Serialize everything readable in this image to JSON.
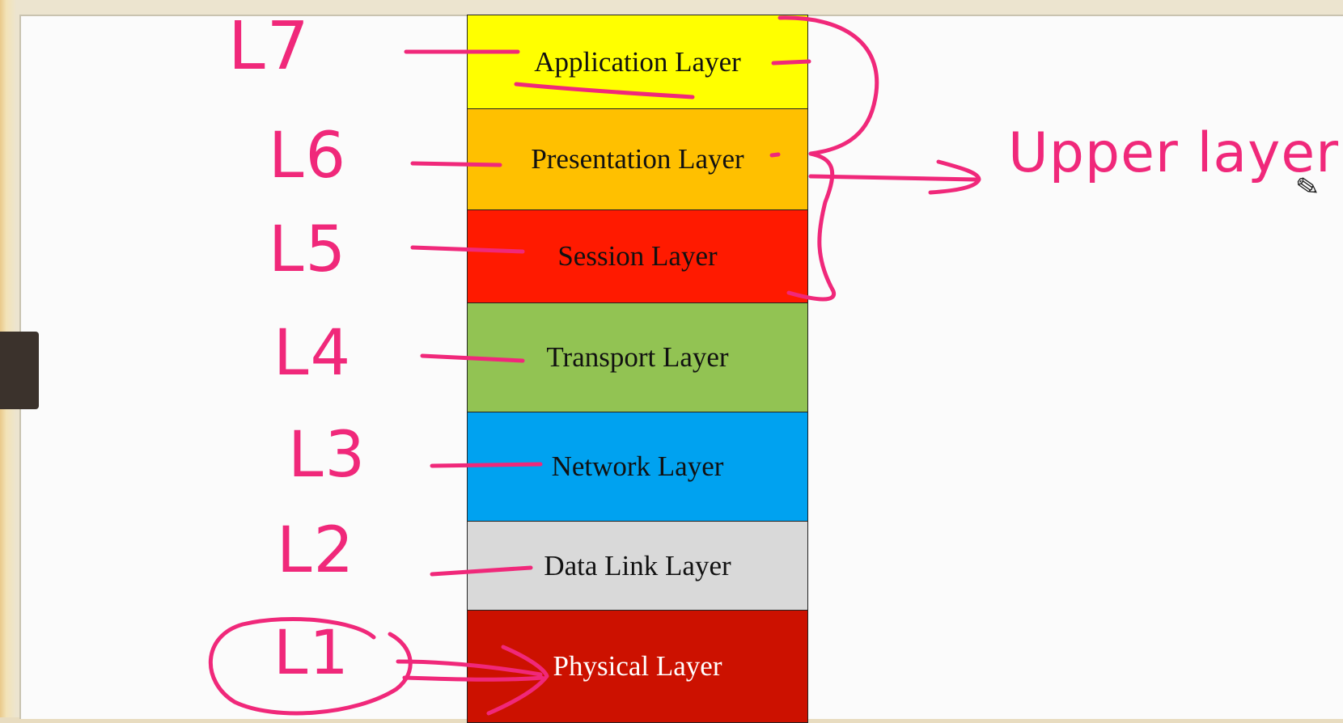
{
  "layers": [
    {
      "label": "Application Layer",
      "handwritten_tag": "L7"
    },
    {
      "label": "Presentation Layer",
      "handwritten_tag": "L6"
    },
    {
      "label": "Session Layer",
      "handwritten_tag": "L5"
    },
    {
      "label": "Transport Layer",
      "handwritten_tag": "L4"
    },
    {
      "label": "Network Layer",
      "handwritten_tag": "L3"
    },
    {
      "label": "Data Link Layer",
      "handwritten_tag": "L2"
    },
    {
      "label": "Physical Layer",
      "handwritten_tag": "L1"
    }
  ],
  "annotation": {
    "upper_group_label": "Upper layer"
  },
  "colors": {
    "application": "#ffff00",
    "presentation": "#ffc000",
    "session": "#ff1a00",
    "transport": "#92c353",
    "network": "#00a2f0",
    "data_link": "#d9d9d9",
    "physical": "#cc1100",
    "ink": "#f0287a"
  },
  "icons": {
    "cursor": "pencil-icon"
  }
}
